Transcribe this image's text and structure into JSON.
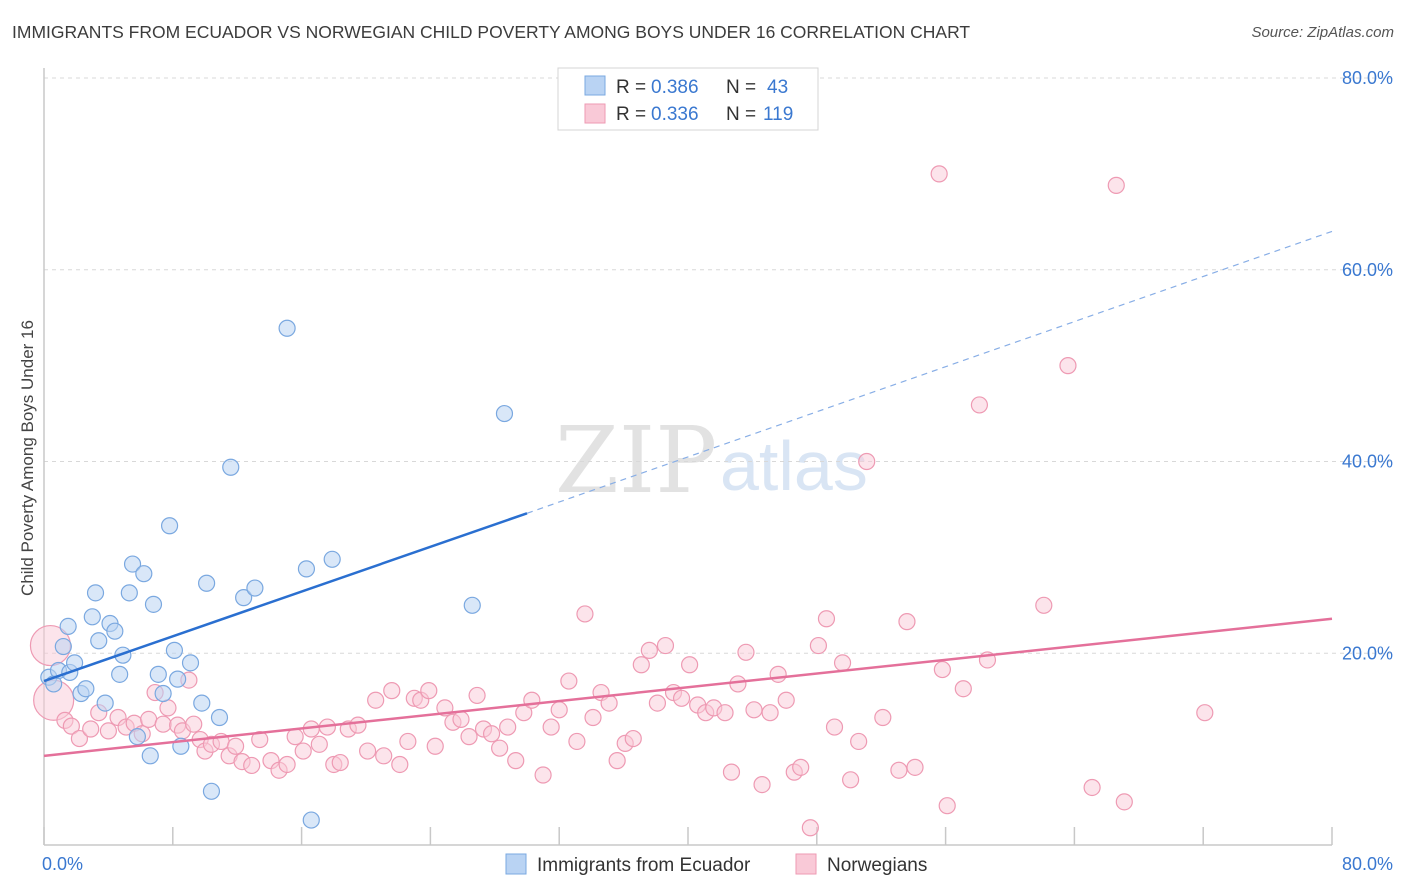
{
  "header": {
    "title": "IMMIGRANTS FROM ECUADOR VS NORWEGIAN CHILD POVERTY AMONG BOYS UNDER 16 CORRELATION CHART",
    "source": "Source: ZipAtlas.com"
  },
  "watermark": {
    "zip": "ZIP",
    "atlas": "atlas"
  },
  "colors": {
    "blue_fill": "#b9d3f3",
    "blue_stroke": "#7aa8e0",
    "blue_line": "#2a6fd0",
    "pink_fill": "#f9c9d7",
    "pink_stroke": "#ee9ab3",
    "pink_line": "#e4709a",
    "tick_text": "#3a78d0",
    "grid": "#d8d8d8"
  },
  "legend": {
    "rows": [
      {
        "r_label": "R = ",
        "r_value": "0.386",
        "n_label": "N = ",
        "n_value": "43"
      },
      {
        "r_label": "R = ",
        "r_value": "0.336",
        "n_label": "N = ",
        "n_value": "119"
      }
    ]
  },
  "chart_data": {
    "type": "scatter",
    "title": "IMMIGRANTS FROM ECUADOR VS NORWEGIAN CHILD POVERTY AMONG BOYS UNDER 16 CORRELATION CHART",
    "xlabel": "",
    "ylabel": "Child Poverty Among Boys Under 16",
    "xlim": [
      0,
      80
    ],
    "ylim": [
      0,
      80
    ],
    "x_tick_labels": [
      "0.0%",
      "80.0%"
    ],
    "y_tick_labels": [
      "20.0%",
      "40.0%",
      "60.0%",
      "80.0%"
    ],
    "y_ticks": [
      20,
      40,
      60,
      80
    ],
    "grid": true,
    "legend_position": "top-center",
    "series": [
      {
        "name": "Immigrants from Ecuador",
        "r": 0.386,
        "n": 43,
        "trend": {
          "x": [
            0,
            30
          ],
          "y": [
            17.1,
            34.6
          ],
          "dashed_to": [
            80,
            64.0
          ]
        },
        "points": [
          [
            0.3,
            17.5
          ],
          [
            0.6,
            16.8
          ],
          [
            0.9,
            18.2
          ],
          [
            1.2,
            20.7
          ],
          [
            1.5,
            22.8
          ],
          [
            1.6,
            18.0
          ],
          [
            1.9,
            19.0
          ],
          [
            2.3,
            15.8
          ],
          [
            2.6,
            16.3
          ],
          [
            3.0,
            23.8
          ],
          [
            3.2,
            26.3
          ],
          [
            3.4,
            21.3
          ],
          [
            3.8,
            14.8
          ],
          [
            4.1,
            23.1
          ],
          [
            4.4,
            22.3
          ],
          [
            4.7,
            17.8
          ],
          [
            4.9,
            19.8
          ],
          [
            5.3,
            26.3
          ],
          [
            5.5,
            29.3
          ],
          [
            5.8,
            11.3
          ],
          [
            6.2,
            28.3
          ],
          [
            6.6,
            9.3
          ],
          [
            6.8,
            25.1
          ],
          [
            7.1,
            17.8
          ],
          [
            7.4,
            15.8
          ],
          [
            7.8,
            33.3
          ],
          [
            8.1,
            20.3
          ],
          [
            8.3,
            17.3
          ],
          [
            8.5,
            10.3
          ],
          [
            9.1,
            19.0
          ],
          [
            9.8,
            14.8
          ],
          [
            10.1,
            27.3
          ],
          [
            10.4,
            5.6
          ],
          [
            10.9,
            13.3
          ],
          [
            11.6,
            39.4
          ],
          [
            12.4,
            25.8
          ],
          [
            13.1,
            26.8
          ],
          [
            15.1,
            53.9
          ],
          [
            16.3,
            28.8
          ],
          [
            16.6,
            2.6
          ],
          [
            17.9,
            29.8
          ],
          [
            26.6,
            25.0
          ],
          [
            28.6,
            45.0
          ]
        ]
      },
      {
        "name": "Norwegians",
        "r": 0.336,
        "n": 119,
        "trend": {
          "x": [
            0,
            80
          ],
          "y": [
            9.3,
            23.6
          ]
        },
        "points": [
          [
            0.4,
            20.8
          ],
          [
            0.6,
            15.1
          ],
          [
            1.3,
            13.0
          ],
          [
            1.7,
            12.4
          ],
          [
            2.2,
            11.1
          ],
          [
            2.9,
            12.1
          ],
          [
            3.4,
            13.8
          ],
          [
            4.0,
            11.9
          ],
          [
            4.6,
            13.3
          ],
          [
            5.1,
            12.3
          ],
          [
            5.6,
            12.7
          ],
          [
            6.1,
            11.6
          ],
          [
            6.5,
            13.1
          ],
          [
            6.9,
            15.9
          ],
          [
            7.4,
            12.6
          ],
          [
            7.7,
            14.3
          ],
          [
            8.3,
            12.5
          ],
          [
            8.6,
            11.9
          ],
          [
            9.0,
            17.2
          ],
          [
            9.3,
            12.6
          ],
          [
            9.7,
            11.0
          ],
          [
            10.0,
            9.8
          ],
          [
            10.4,
            10.5
          ],
          [
            11.0,
            10.8
          ],
          [
            11.5,
            9.3
          ],
          [
            11.9,
            10.3
          ],
          [
            12.3,
            8.7
          ],
          [
            12.9,
            8.3
          ],
          [
            13.4,
            11.0
          ],
          [
            14.1,
            8.8
          ],
          [
            14.6,
            7.8
          ],
          [
            15.1,
            8.4
          ],
          [
            15.6,
            11.3
          ],
          [
            16.1,
            9.8
          ],
          [
            16.6,
            12.1
          ],
          [
            17.1,
            10.5
          ],
          [
            17.6,
            12.3
          ],
          [
            18.0,
            8.4
          ],
          [
            18.4,
            8.6
          ],
          [
            18.9,
            12.1
          ],
          [
            19.5,
            12.5
          ],
          [
            20.1,
            9.8
          ],
          [
            20.6,
            15.1
          ],
          [
            21.1,
            9.3
          ],
          [
            21.6,
            16.1
          ],
          [
            22.1,
            8.4
          ],
          [
            22.6,
            10.8
          ],
          [
            23.0,
            15.3
          ],
          [
            23.4,
            15.1
          ],
          [
            23.9,
            16.1
          ],
          [
            24.3,
            10.3
          ],
          [
            24.9,
            14.3
          ],
          [
            25.4,
            12.8
          ],
          [
            25.9,
            13.1
          ],
          [
            26.4,
            11.3
          ],
          [
            26.9,
            15.6
          ],
          [
            27.3,
            12.1
          ],
          [
            27.8,
            11.6
          ],
          [
            28.3,
            10.1
          ],
          [
            28.8,
            12.3
          ],
          [
            29.3,
            8.8
          ],
          [
            29.8,
            13.8
          ],
          [
            30.3,
            15.1
          ],
          [
            31.0,
            7.3
          ],
          [
            31.5,
            12.3
          ],
          [
            32.0,
            14.1
          ],
          [
            32.6,
            17.1
          ],
          [
            33.1,
            10.8
          ],
          [
            33.6,
            24.1
          ],
          [
            34.1,
            13.3
          ],
          [
            34.6,
            15.9
          ],
          [
            35.1,
            14.8
          ],
          [
            35.6,
            8.8
          ],
          [
            36.1,
            10.6
          ],
          [
            36.6,
            11.1
          ],
          [
            37.1,
            18.8
          ],
          [
            37.6,
            20.3
          ],
          [
            38.1,
            14.8
          ],
          [
            38.6,
            20.8
          ],
          [
            39.1,
            15.9
          ],
          [
            39.6,
            15.3
          ],
          [
            40.1,
            18.8
          ],
          [
            40.6,
            14.6
          ],
          [
            41.1,
            13.8
          ],
          [
            41.6,
            14.3
          ],
          [
            42.3,
            13.8
          ],
          [
            42.7,
            7.6
          ],
          [
            43.1,
            16.8
          ],
          [
            43.6,
            20.1
          ],
          [
            44.1,
            14.1
          ],
          [
            44.6,
            6.3
          ],
          [
            45.1,
            13.8
          ],
          [
            45.6,
            17.8
          ],
          [
            46.1,
            15.1
          ],
          [
            46.6,
            7.6
          ],
          [
            47.0,
            8.1
          ],
          [
            47.6,
            1.8
          ],
          [
            48.1,
            20.8
          ],
          [
            48.6,
            23.6
          ],
          [
            49.1,
            12.3
          ],
          [
            49.6,
            19.0
          ],
          [
            50.1,
            6.8
          ],
          [
            50.6,
            10.8
          ],
          [
            51.1,
            40.0
          ],
          [
            52.1,
            13.3
          ],
          [
            53.1,
            7.8
          ],
          [
            53.6,
            23.3
          ],
          [
            54.1,
            8.1
          ],
          [
            55.6,
            70.0
          ],
          [
            55.8,
            18.3
          ],
          [
            56.1,
            4.1
          ],
          [
            57.1,
            16.3
          ],
          [
            58.1,
            45.9
          ],
          [
            58.6,
            19.3
          ],
          [
            62.1,
            25.0
          ],
          [
            63.6,
            50.0
          ],
          [
            65.1,
            6.0
          ],
          [
            66.6,
            68.8
          ],
          [
            67.1,
            4.5
          ],
          [
            72.1,
            13.8
          ]
        ]
      }
    ]
  },
  "bottom_legend": [
    {
      "label": "Immigrants from Ecuador"
    },
    {
      "label": "Norwegians"
    }
  ]
}
